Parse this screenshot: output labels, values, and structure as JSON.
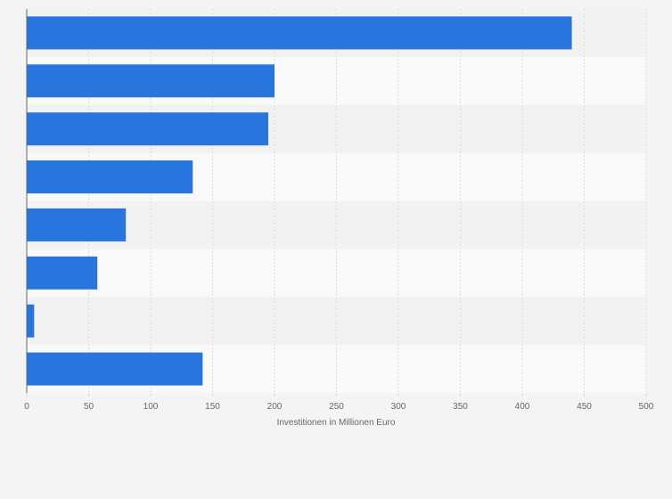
{
  "chart_data": {
    "type": "bar",
    "orientation": "horizontal",
    "title": "",
    "xlabel": "Investitionen in Millionen Euro",
    "ylabel": "",
    "xlim": [
      0,
      500
    ],
    "xticks": [
      0,
      50,
      100,
      150,
      200,
      250,
      300,
      350,
      400,
      450,
      500
    ],
    "grid": true,
    "categories": [
      "",
      "",
      "",
      "",
      "",
      "",
      "",
      ""
    ],
    "values": [
      440,
      200,
      195,
      134,
      80,
      57,
      6,
      142
    ],
    "bar_color": "#2876dd"
  },
  "colors": {
    "background": "#f4f4f4",
    "band_light": "#f9f9f9",
    "band_dark": "#f2f2f2",
    "grid": "#dcdcdc",
    "axis": "#666666",
    "text": "#666666"
  }
}
